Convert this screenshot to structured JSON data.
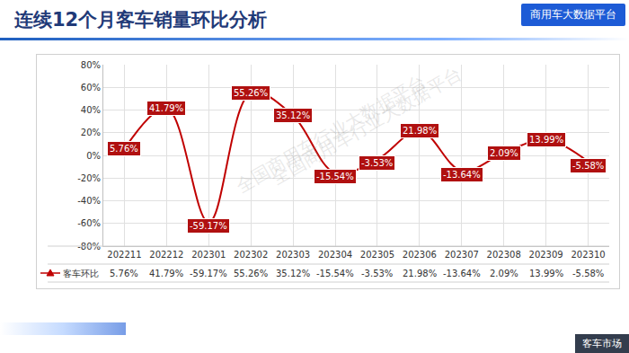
{
  "chart_data": {
    "type": "line",
    "title": "连续12个月客车销量环比分析",
    "annotations": [
      "商用车大数据平台",
      "客车市场",
      "全国商用车行业大数据平台",
      "全国商用车行业大数据平台"
    ],
    "categories": [
      "202211",
      "202212",
      "202301",
      "202302",
      "202303",
      "202304",
      "202305",
      "202306",
      "202307",
      "202308",
      "202309",
      "202310"
    ],
    "series": [
      {
        "name": "客车环比",
        "color": "#c00000",
        "marker": "triangle-up",
        "line_style": "solid",
        "values": [
          5.76,
          41.79,
          -59.17,
          55.26,
          35.12,
          -15.54,
          -3.53,
          21.98,
          -13.64,
          2.09,
          13.99,
          -5.58
        ],
        "value_labels": [
          "5.76%",
          "41.79%",
          "-59.17%",
          "55.26%",
          "35.12%",
          "-15.54%",
          "-3.53%",
          "21.98%",
          "-13.64%",
          "2.09%",
          "13.99%",
          "-5.58%"
        ]
      }
    ],
    "ylim": [
      -80,
      80
    ],
    "yticks": [
      {
        "value": -80,
        "label": "-80%"
      },
      {
        "value": -60,
        "label": "-60%"
      },
      {
        "value": -40,
        "label": "-40%"
      },
      {
        "value": -20,
        "label": "-20%"
      },
      {
        "value": 0,
        "label": "0%"
      },
      {
        "value": 20,
        "label": "20%"
      },
      {
        "value": 40,
        "label": "40%"
      },
      {
        "value": 60,
        "label": "60%"
      },
      {
        "value": 80,
        "label": "80%"
      }
    ],
    "grid": true,
    "data_labels": true
  }
}
